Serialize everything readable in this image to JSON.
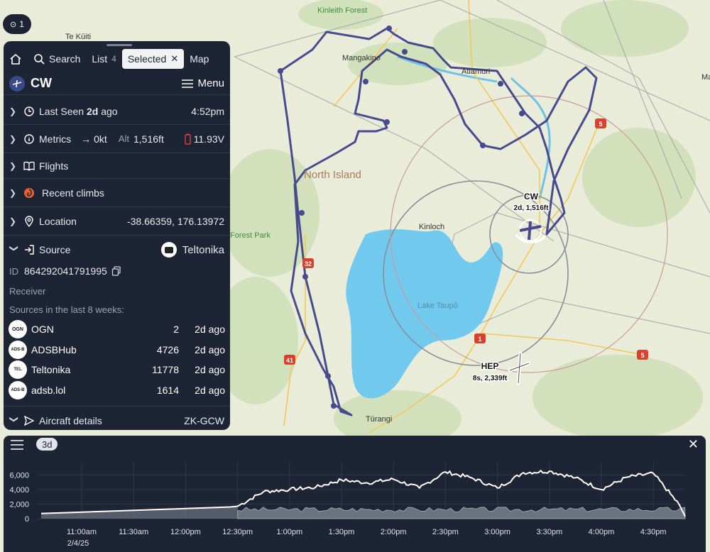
{
  "map": {
    "labels": {
      "kinleith": "Kinleith Forest",
      "kuiti": "Te Kūiti",
      "mangakino": "Mangakino",
      "atiamuri": "Ātiamuri",
      "north_island": "North Island",
      "forest_park": "Forest Park",
      "kinloch": "Kinloch",
      "lake_taupo": "Lake Taupō",
      "turangi": "Tūrangi",
      "edge_right": "Ma"
    },
    "roads": [
      "32",
      "41",
      "1",
      "5",
      "5"
    ],
    "aircraft": [
      {
        "callsign": "CW",
        "info": "2d, 1,516ft"
      },
      {
        "callsign": "HEP",
        "info": "8s, 2,339ft"
      }
    ],
    "cluster_count": "1",
    "colors": {
      "water": "#72c9ee",
      "track": "#474a8e",
      "land": "#e9ecd8"
    }
  },
  "panel": {
    "tabs": {
      "search": "Search",
      "list": "List",
      "list_count": "4",
      "selected": "Selected",
      "map": "Map"
    },
    "callsign": "CW",
    "menu_label": "Menu",
    "last_seen_prefix": "Last Seen",
    "last_seen_value": "2d",
    "last_seen_suffix": "ago",
    "last_seen_time": "4:52pm",
    "metrics_label": "Metrics",
    "speed": "0kt",
    "alt_label": "Alt",
    "alt_value": "1,516ft",
    "voltage": "11.93V",
    "flights_label": "Flights",
    "climbs_label": "Recent climbs",
    "location_label": "Location",
    "location_value": "-38.66359, 176.13972",
    "source_label": "Source",
    "source_value": "Teltonika",
    "id_label": "ID",
    "id_value": "864292041791995",
    "receiver_label": "Receiver",
    "sources_heading": "Sources in the last 8 weeks:",
    "sources": [
      {
        "logo": "OGN",
        "name": "OGN",
        "count": "2",
        "ago": "2d ago"
      },
      {
        "logo": "ADS-B",
        "name": "ADSBHub",
        "count": "4726",
        "ago": "2d ago"
      },
      {
        "logo": "TEL",
        "name": "Teltonika",
        "count": "11778",
        "ago": "2d ago"
      },
      {
        "logo": "ADS-B",
        "name": "adsb.lol",
        "count": "1614",
        "ago": "2d ago"
      }
    ],
    "aircraft_details_label": "Aircraft details",
    "registration": "ZK-GCW"
  },
  "chart": {
    "range_label": "3d",
    "date_label": "2/4/25",
    "y_ticks": [
      "6,000",
      "4,000",
      "2,000",
      "0"
    ],
    "x_ticks": [
      "11:00am",
      "11:30am",
      "12:00pm",
      "12:30pm",
      "1:00pm",
      "1:30pm",
      "2:00pm",
      "2:30pm",
      "3:00pm",
      "3:30pm",
      "4:00pm",
      "4:30pm"
    ]
  },
  "chart_data": {
    "type": "line",
    "title": "",
    "xlabel": "",
    "ylabel": "",
    "ylim": [
      0,
      7000
    ],
    "x": [
      "12:30pm",
      "12:45pm",
      "1:00pm",
      "1:15pm",
      "1:30pm",
      "1:45pm",
      "2:00pm",
      "2:15pm",
      "2:30pm",
      "2:45pm",
      "3:00pm",
      "3:15pm",
      "3:30pm",
      "3:45pm",
      "4:00pm",
      "4:15pm",
      "4:30pm",
      "4:45pm"
    ],
    "series": [
      {
        "name": "",
        "values": [
          1700,
          3700,
          4000,
          4300,
          5300,
          4900,
          5400,
          4200,
          6400,
          5600,
          4200,
          6300,
          6500,
          5600,
          4000,
          5700,
          6200,
          1900
        ]
      }
    ]
  }
}
